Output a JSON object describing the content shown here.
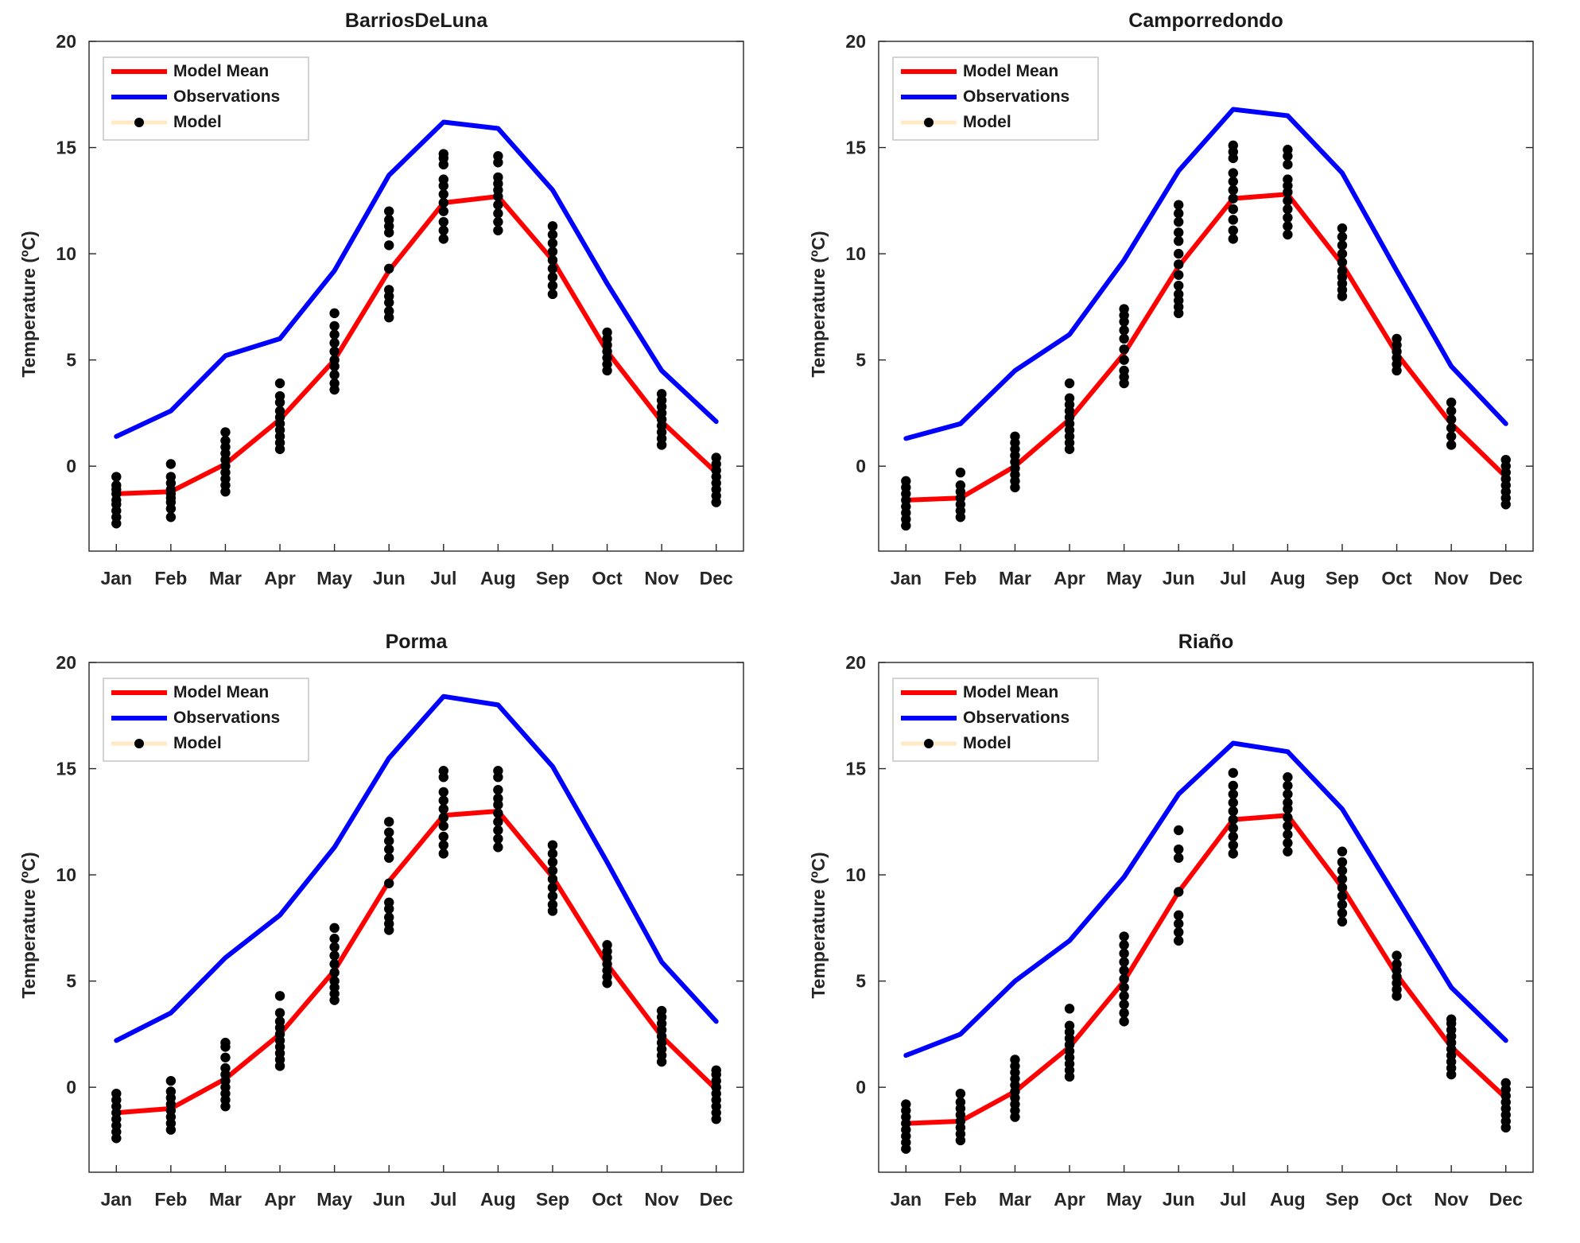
{
  "figure": {
    "colors": {
      "model_mean": "#ff0000",
      "observations": "#0000ff",
      "model": "#000000",
      "model_legend_line": "#ffe9c6",
      "axis": "#262626"
    }
  },
  "chart_data": [
    {
      "type": "line",
      "title": "BarriosDeLuna",
      "ylabel": "Temperature (ºC)",
      "xlabel": "",
      "categories": [
        "Jan",
        "Feb",
        "Mar",
        "Apr",
        "May",
        "Jun",
        "Jul",
        "Aug",
        "Sep",
        "Oct",
        "Nov",
        "Dec"
      ],
      "ylim": [
        -4,
        20
      ],
      "yticks": [
        "0",
        "5",
        "10",
        "15",
        "20"
      ],
      "legend": {
        "position": "top-left",
        "entries": [
          "Model Mean",
          "Observations",
          "Model"
        ]
      },
      "series": [
        {
          "name": "Model Mean",
          "values": [
            -1.3,
            -1.2,
            0.1,
            2.2,
            5.0,
            9.2,
            12.4,
            12.7,
            9.7,
            5.4,
            2.1,
            -0.3
          ]
        },
        {
          "name": "Observations",
          "values": [
            1.4,
            2.6,
            5.2,
            6.0,
            9.2,
            13.7,
            16.2,
            15.9,
            13.0,
            8.6,
            4.5,
            2.1
          ]
        }
      ],
      "model_points": [
        [
          -2.7,
          -2.4,
          -2.1,
          -1.8,
          -1.6,
          -1.3,
          -1.1,
          -0.9,
          -0.5
        ],
        [
          -2.4,
          -2.0,
          -1.7,
          -1.5,
          -1.3,
          -1.1,
          -0.8,
          -0.5,
          0.1
        ],
        [
          -1.2,
          -0.9,
          -0.6,
          -0.3,
          0.0,
          0.3,
          0.6,
          0.9,
          1.2,
          1.6
        ],
        [
          0.8,
          1.1,
          1.4,
          1.7,
          2.0,
          2.3,
          2.6,
          3.0,
          3.3,
          3.9
        ],
        [
          3.6,
          3.9,
          4.3,
          4.7,
          5.0,
          5.4,
          5.8,
          6.2,
          6.6,
          7.2
        ],
        [
          7.0,
          7.3,
          7.7,
          8.0,
          8.3,
          9.3,
          10.4,
          11.0,
          11.3,
          11.6,
          12.0
        ],
        [
          10.7,
          11.1,
          11.5,
          12.0,
          12.4,
          12.8,
          13.2,
          13.5,
          14.2,
          14.5,
          14.7
        ],
        [
          11.1,
          11.5,
          11.9,
          12.3,
          12.7,
          13.0,
          13.3,
          13.6,
          14.3,
          14.6
        ],
        [
          8.1,
          8.5,
          8.9,
          9.3,
          9.7,
          10.1,
          10.5,
          10.9,
          11.3
        ],
        [
          4.5,
          4.8,
          5.1,
          5.4,
          5.7,
          6.0,
          6.3
        ],
        [
          1.0,
          1.3,
          1.6,
          1.9,
          2.2,
          2.5,
          2.8,
          3.1,
          3.4
        ],
        [
          -1.7,
          -1.4,
          -1.1,
          -0.8,
          -0.5,
          -0.2,
          0.1,
          0.4
        ]
      ]
    },
    {
      "type": "line",
      "title": "Camporredondo",
      "ylabel": "Temperature (ºC)",
      "xlabel": "",
      "categories": [
        "Jan",
        "Feb",
        "Mar",
        "Apr",
        "May",
        "Jun",
        "Jul",
        "Aug",
        "Sep",
        "Oct",
        "Nov",
        "Dec"
      ],
      "ylim": [
        -4,
        20
      ],
      "yticks": [
        "0",
        "5",
        "10",
        "15",
        "20"
      ],
      "legend": {
        "position": "top-left",
        "entries": [
          "Model Mean",
          "Observations",
          "Model"
        ]
      },
      "series": [
        {
          "name": "Model Mean",
          "values": [
            -1.6,
            -1.5,
            0.0,
            2.2,
            5.3,
            9.4,
            12.6,
            12.8,
            9.5,
            5.3,
            2.0,
            -0.5
          ]
        },
        {
          "name": "Observations",
          "values": [
            1.3,
            2.0,
            4.5,
            6.2,
            9.7,
            13.9,
            16.8,
            16.5,
            13.8,
            9.2,
            4.7,
            2.0
          ]
        }
      ],
      "model_points": [
        [
          -2.8,
          -2.5,
          -2.2,
          -1.9,
          -1.6,
          -1.3,
          -1.0,
          -0.7
        ],
        [
          -2.4,
          -2.1,
          -1.8,
          -1.5,
          -1.2,
          -0.9,
          -0.3
        ],
        [
          -1.0,
          -0.7,
          -0.4,
          -0.1,
          0.2,
          0.5,
          0.8,
          1.1,
          1.4
        ],
        [
          0.8,
          1.1,
          1.4,
          1.7,
          2.0,
          2.3,
          2.6,
          2.9,
          3.2,
          3.9
        ],
        [
          3.9,
          4.2,
          4.5,
          5.0,
          5.5,
          6.0,
          6.4,
          6.8,
          7.1,
          7.4
        ],
        [
          7.2,
          7.5,
          7.8,
          8.1,
          8.5,
          9.0,
          9.5,
          10.0,
          10.6,
          11.0,
          11.5,
          11.9,
          12.3
        ],
        [
          10.7,
          11.1,
          11.6,
          12.1,
          12.6,
          13.0,
          13.4,
          13.8,
          14.5,
          14.8,
          15.1
        ],
        [
          10.9,
          11.3,
          11.7,
          12.1,
          12.5,
          12.9,
          13.2,
          13.5,
          14.2,
          14.6,
          14.9
        ],
        [
          8.0,
          8.3,
          8.6,
          8.9,
          9.2,
          9.6,
          10.0,
          10.4,
          10.8,
          11.2
        ],
        [
          4.5,
          4.8,
          5.1,
          5.4,
          5.7,
          6.0
        ],
        [
          1.0,
          1.4,
          1.8,
          2.2,
          2.6,
          3.0
        ],
        [
          -1.8,
          -1.5,
          -1.2,
          -0.9,
          -0.6,
          -0.3,
          0.0,
          0.3
        ]
      ]
    },
    {
      "type": "line",
      "title": "Porma",
      "ylabel": "Temperature (ºC)",
      "xlabel": "",
      "categories": [
        "Jan",
        "Feb",
        "Mar",
        "Apr",
        "May",
        "Jun",
        "Jul",
        "Aug",
        "Sep",
        "Oct",
        "Nov",
        "Dec"
      ],
      "ylim": [
        -4,
        20
      ],
      "yticks": [
        "0",
        "5",
        "10",
        "15",
        "20"
      ],
      "legend": {
        "position": "top-left",
        "entries": [
          "Model Mean",
          "Observations",
          "Model"
        ]
      },
      "series": [
        {
          "name": "Model Mean",
          "values": [
            -1.2,
            -1.0,
            0.4,
            2.5,
            5.5,
            9.7,
            12.8,
            13.0,
            9.9,
            5.8,
            2.4,
            -0.1
          ]
        },
        {
          "name": "Observations",
          "values": [
            2.2,
            3.5,
            6.1,
            8.1,
            11.3,
            15.5,
            18.4,
            18.0,
            15.1,
            10.6,
            5.9,
            3.1
          ]
        }
      ],
      "model_points": [
        [
          -2.4,
          -2.1,
          -1.8,
          -1.5,
          -1.2,
          -0.9,
          -0.6,
          -0.3
        ],
        [
          -2.0,
          -1.7,
          -1.4,
          -1.1,
          -0.8,
          -0.5,
          -0.2,
          0.3
        ],
        [
          -0.9,
          -0.6,
          -0.3,
          0.0,
          0.3,
          0.6,
          0.9,
          1.4,
          1.9,
          2.1
        ],
        [
          1.0,
          1.3,
          1.6,
          1.9,
          2.2,
          2.5,
          2.8,
          3.1,
          3.5,
          4.3
        ],
        [
          4.1,
          4.4,
          4.7,
          5.0,
          5.4,
          5.8,
          6.2,
          6.6,
          7.0,
          7.5
        ],
        [
          7.4,
          7.7,
          8.0,
          8.4,
          8.7,
          9.6,
          10.8,
          11.2,
          11.6,
          12.0,
          12.5
        ],
        [
          11.0,
          11.4,
          11.8,
          12.3,
          12.7,
          13.1,
          13.5,
          13.9,
          14.6,
          14.9
        ],
        [
          11.3,
          11.7,
          12.1,
          12.5,
          12.9,
          13.3,
          13.6,
          14.0,
          14.6,
          14.9
        ],
        [
          8.3,
          8.6,
          9.0,
          9.4,
          9.8,
          10.2,
          10.6,
          11.0,
          11.4
        ],
        [
          4.9,
          5.2,
          5.5,
          5.8,
          6.1,
          6.4,
          6.7
        ],
        [
          1.2,
          1.5,
          1.8,
          2.1,
          2.4,
          2.7,
          3.0,
          3.3,
          3.6
        ],
        [
          -1.5,
          -1.2,
          -0.9,
          -0.6,
          -0.3,
          0.0,
          0.3,
          0.6,
          0.8
        ]
      ]
    },
    {
      "type": "line",
      "title": "Riaño",
      "ylabel": "Temperature (ºC)",
      "xlabel": "",
      "categories": [
        "Jan",
        "Feb",
        "Mar",
        "Apr",
        "May",
        "Jun",
        "Jul",
        "Aug",
        "Sep",
        "Oct",
        "Nov",
        "Dec"
      ],
      "ylim": [
        -4,
        20
      ],
      "yticks": [
        "0",
        "5",
        "10",
        "15",
        "20"
      ],
      "legend": {
        "position": "top-left",
        "entries": [
          "Model Mean",
          "Observations",
          "Model"
        ]
      },
      "series": [
        {
          "name": "Model Mean",
          "values": [
            -1.7,
            -1.6,
            -0.2,
            1.9,
            5.0,
            9.2,
            12.6,
            12.8,
            9.4,
            5.3,
            1.9,
            -0.5
          ]
        },
        {
          "name": "Observations",
          "values": [
            1.5,
            2.5,
            5.0,
            6.9,
            9.9,
            13.8,
            16.2,
            15.8,
            13.1,
            8.9,
            4.7,
            2.2
          ]
        }
      ],
      "model_points": [
        [
          -2.9,
          -2.6,
          -2.3,
          -2.0,
          -1.7,
          -1.4,
          -1.1,
          -0.8
        ],
        [
          -2.5,
          -2.2,
          -1.9,
          -1.6,
          -1.3,
          -1.0,
          -0.7,
          -0.3
        ],
        [
          -1.4,
          -1.1,
          -0.8,
          -0.5,
          -0.2,
          0.1,
          0.4,
          0.7,
          1.0,
          1.3
        ],
        [
          0.5,
          0.8,
          1.1,
          1.4,
          1.7,
          2.0,
          2.3,
          2.6,
          2.9,
          3.7
        ],
        [
          3.1,
          3.5,
          3.9,
          4.3,
          4.7,
          5.1,
          5.5,
          5.9,
          6.3,
          6.7,
          7.1
        ],
        [
          6.9,
          7.3,
          7.7,
          8.1,
          9.2,
          10.8,
          11.2,
          12.1
        ],
        [
          11.0,
          11.4,
          11.8,
          12.2,
          12.6,
          13.0,
          13.4,
          13.8,
          14.2,
          14.8
        ],
        [
          11.1,
          11.5,
          11.9,
          12.3,
          12.7,
          13.1,
          13.4,
          13.8,
          14.2,
          14.6
        ],
        [
          7.8,
          8.2,
          8.6,
          9.0,
          9.4,
          9.8,
          10.2,
          10.6,
          11.1
        ],
        [
          4.3,
          4.6,
          4.9,
          5.2,
          5.5,
          5.8,
          6.2
        ],
        [
          0.6,
          0.9,
          1.2,
          1.5,
          1.8,
          2.1,
          2.4,
          2.7,
          3.0,
          3.2
        ],
        [
          -1.9,
          -1.6,
          -1.3,
          -1.0,
          -0.7,
          -0.4,
          -0.1,
          0.2
        ]
      ]
    }
  ]
}
